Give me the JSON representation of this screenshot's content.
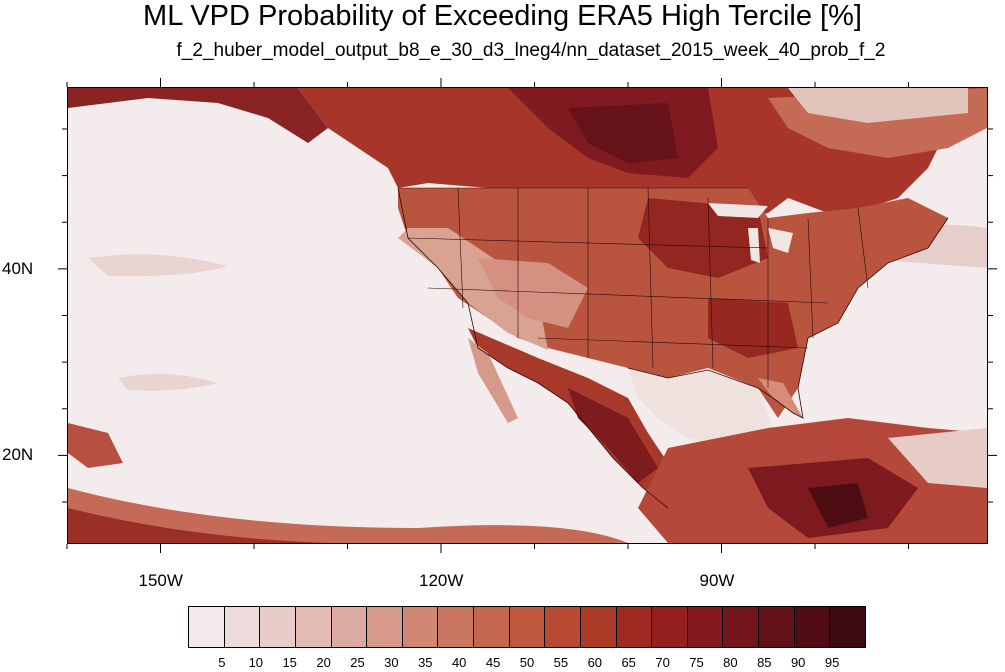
{
  "title": "ML VPD Probability of Exceeding ERA5 High Tercile [%]",
  "subtitle": "f_2_huber_model_output_b8_e_30_d3_lneg4/nn_dataset_2015_week_40_prob_f_2",
  "map": {
    "lon_range": [
      -160,
      -61.5
    ],
    "lat_range": [
      10.5,
      59.5
    ],
    "lon_labels": [
      {
        "lon": -150,
        "text": "150W"
      },
      {
        "lon": -120,
        "text": "120W"
      },
      {
        "lon": -90,
        "text": "90W"
      }
    ],
    "lat_labels": [
      {
        "lat": 40,
        "text": "40N"
      },
      {
        "lat": 20,
        "text": "20N"
      }
    ],
    "ocean_color": "#f4ecec"
  },
  "colorbar": {
    "labels": [
      "5",
      "10",
      "15",
      "20",
      "25",
      "30",
      "35",
      "40",
      "45",
      "50",
      "55",
      "60",
      "65",
      "70",
      "75",
      "80",
      "85",
      "90",
      "95"
    ],
    "colors": [
      "#f2eaea",
      "#eddcdb",
      "#e8ccc8",
      "#e2bbb4",
      "#dcaaa0",
      "#d6998a",
      "#d08875",
      "#ca7762",
      "#c4674f",
      "#be593f",
      "#b84a31",
      "#ab3a26",
      "#9f2b20",
      "#93201c",
      "#841a1e",
      "#74141c",
      "#621119",
      "#4f0d13",
      "#3c0a0e"
    ]
  }
}
